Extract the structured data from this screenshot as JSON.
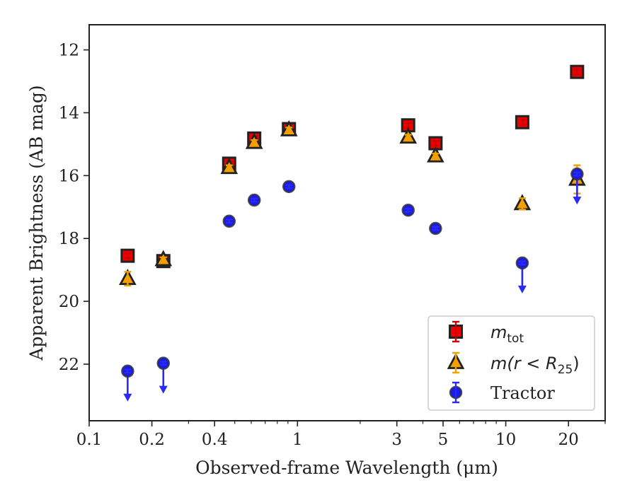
{
  "chart_data": {
    "type": "scatter",
    "xlabel": "Observed-frame Wavelength (μm)",
    "ylabel": "Apparent Brightness (AB mag)",
    "xscale": "log",
    "xlim": [
      0.1,
      30
    ],
    "ylim": [
      23.8,
      11.2
    ],
    "y_inverted": true,
    "x_major_ticks": [
      {
        "value": 0.1,
        "label": "0.1"
      },
      {
        "value": 0.2,
        "label": "0.2"
      },
      {
        "value": 0.4,
        "label": "0.4"
      },
      {
        "value": 1,
        "label": "1"
      },
      {
        "value": 3,
        "label": "3"
      },
      {
        "value": 5,
        "label": "5"
      },
      {
        "value": 10,
        "label": "10"
      },
      {
        "value": 20,
        "label": "20"
      }
    ],
    "x_minor_ticks": [
      0.3,
      0.5,
      0.6,
      0.7,
      0.8,
      0.9,
      2,
      4,
      6,
      7,
      8,
      9,
      30
    ],
    "y_ticks": [
      {
        "value": 12,
        "label": "12"
      },
      {
        "value": 14,
        "label": "14"
      },
      {
        "value": 16,
        "label": "16"
      },
      {
        "value": 18,
        "label": "18"
      },
      {
        "value": 20,
        "label": "20"
      },
      {
        "value": 22,
        "label": "22"
      }
    ],
    "legend": {
      "placement": "lower-right",
      "entries": [
        {
          "series": 0,
          "main": "m",
          "sub": "tot",
          "tail": ""
        },
        {
          "series": 1,
          "main": "m(r < R",
          "sub": "25",
          "tail": ")"
        },
        {
          "series": 2,
          "main": "Tractor",
          "sub": "",
          "tail": ""
        }
      ]
    },
    "series": [
      {
        "marker": "square",
        "face_color": "#ee0000",
        "edge_color": "#222222",
        "error_color": "#cc0000",
        "points": [
          {
            "x": 0.153,
            "y": 18.55,
            "err": 0.08
          },
          {
            "x": 0.227,
            "y": 18.72,
            "err": 0.08
          },
          {
            "x": 0.47,
            "y": 15.62,
            "err": 0.08
          },
          {
            "x": 0.62,
            "y": 14.82,
            "err": 0.08
          },
          {
            "x": 0.91,
            "y": 14.52,
            "err": 0.08
          },
          {
            "x": 3.4,
            "y": 14.4,
            "err": 0.08
          },
          {
            "x": 4.6,
            "y": 14.97,
            "err": 0.08
          },
          {
            "x": 12.0,
            "y": 14.3,
            "err": 0.08
          },
          {
            "x": 22.0,
            "y": 12.7,
            "err": 0.08
          }
        ]
      },
      {
        "marker": "triangle",
        "face_color": "#f5a000",
        "edge_color": "#222222",
        "error_color": "#f0a000",
        "points": [
          {
            "x": 0.153,
            "y": 19.28,
            "err": 0.22
          },
          {
            "x": 0.227,
            "y": 18.68,
            "err": 0.08
          },
          {
            "x": 0.47,
            "y": 15.75,
            "err": 0.08
          },
          {
            "x": 0.62,
            "y": 14.95,
            "err": 0.08
          },
          {
            "x": 0.91,
            "y": 14.55,
            "err": 0.08
          },
          {
            "x": 3.4,
            "y": 14.78,
            "err": 0.08
          },
          {
            "x": 4.6,
            "y": 15.38,
            "err": 0.08
          },
          {
            "x": 12.0,
            "y": 16.9,
            "err": 0.18
          },
          {
            "x": 22.0,
            "y": 16.12,
            "err": 0.45
          }
        ]
      },
      {
        "marker": "circle",
        "face_color": "#1a1aee",
        "edge_color": "#333344",
        "error_color": "#2a2af0",
        "points": [
          {
            "x": 0.153,
            "y": 22.22,
            "err": 0.05,
            "upper_limit": true
          },
          {
            "x": 0.227,
            "y": 21.97,
            "err": 0.05,
            "upper_limit": true
          },
          {
            "x": 0.47,
            "y": 17.45,
            "err": 0.05
          },
          {
            "x": 0.62,
            "y": 16.78,
            "err": 0.05
          },
          {
            "x": 0.91,
            "y": 16.35,
            "err": 0.05
          },
          {
            "x": 3.4,
            "y": 17.1,
            "err": 0.05
          },
          {
            "x": 4.6,
            "y": 17.68,
            "err": 0.05
          },
          {
            "x": 12.0,
            "y": 18.78,
            "err": 0.05,
            "upper_limit": true
          },
          {
            "x": 22.0,
            "y": 15.95,
            "err": 0.05,
            "upper_limit": true
          }
        ]
      }
    ]
  }
}
